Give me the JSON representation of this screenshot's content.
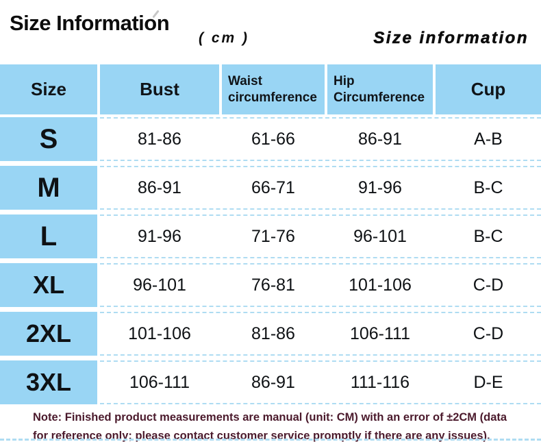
{
  "page": {
    "title": "Size Information",
    "unit_label": "( cm )",
    "subtitle": "Size information"
  },
  "table": {
    "header": {
      "size": "Size",
      "bust": "Bust",
      "waist": [
        "Waist",
        "circumference"
      ],
      "hip": [
        "Hip",
        "Circumference"
      ],
      "cup": "Cup"
    },
    "rows": [
      {
        "size": "S",
        "bust": "81-86",
        "waist": "61-66",
        "hip": "86-91",
        "cup": "A-B"
      },
      {
        "size": "M",
        "bust": "86-91",
        "waist": "66-71",
        "hip": "91-96",
        "cup": "B-C"
      },
      {
        "size": "L",
        "bust": "91-96",
        "waist": "71-76",
        "hip": "96-101",
        "cup": "B-C"
      },
      {
        "size": "XL",
        "bust": "96-101",
        "waist": "76-81",
        "hip": "101-106",
        "cup": "C-D"
      },
      {
        "size": "2XL",
        "bust": "101-106",
        "waist": "81-86",
        "hip": "106-111",
        "cup": "C-D"
      },
      {
        "size": "3XL",
        "bust": "106-111",
        "waist": "86-91",
        "hip": "111-116",
        "cup": "D-E"
      }
    ]
  },
  "note": "Note: Finished product measurements are manual (unit: CM) with an error of ±2CM (data for reference only; please contact customer service promptly if there are any issues).",
  "colors": {
    "cell_blue": "#99d5f4",
    "dash_blue": "#aedcf2",
    "note_text": "#4b1a2c"
  }
}
